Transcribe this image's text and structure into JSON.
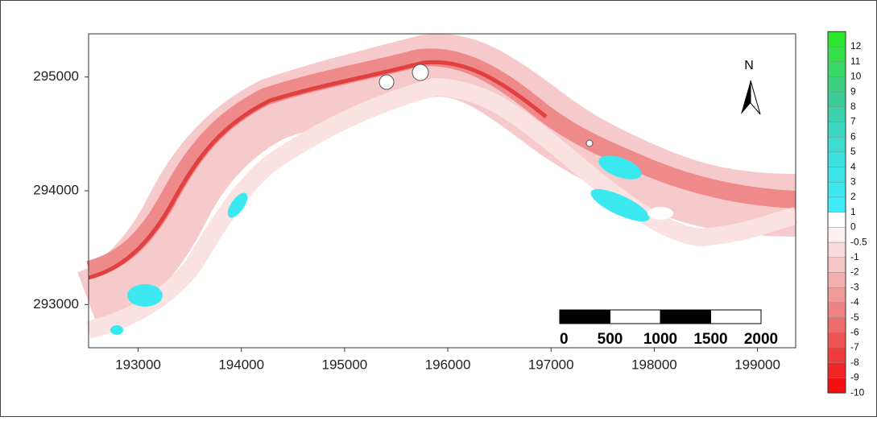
{
  "map": {
    "north": "N",
    "x_axis": {
      "lim": [
        192520,
        199370
      ],
      "ticks": [
        193000,
        194000,
        195000,
        196000,
        197000,
        198000,
        199000
      ]
    },
    "y_axis": {
      "lim": [
        292620,
        295380
      ],
      "ticks": [
        293000,
        294000,
        295000
      ]
    },
    "colorbar": {
      "labels": [
        12,
        11,
        10,
        9,
        8,
        7,
        6,
        5,
        4,
        3,
        2,
        1,
        0,
        -0.5,
        -1,
        -2,
        -3,
        -4,
        -5,
        -6,
        -7,
        -8,
        -9,
        -10
      ],
      "colors": [
        "#2ee82e",
        "#36e04a",
        "#3ad866",
        "#3cd080",
        "#3ccc98",
        "#3cd0ac",
        "#3cd8c0",
        "#3cdcd0",
        "#3ce0dc",
        "#3ce4e8",
        "#3ce8f0",
        "#40ecf8",
        "#ffffff",
        "#fdf0f0",
        "#f9dada",
        "#f6c6c6",
        "#f3b0b0",
        "#f09a9a",
        "#ee8484",
        "#ee6c6c",
        "#ee5454",
        "#ef3c3c",
        "#f02626",
        "#f21010"
      ]
    },
    "scale_bar": {
      "labels": [
        0,
        500,
        1000,
        1500,
        2000
      ]
    }
  }
}
